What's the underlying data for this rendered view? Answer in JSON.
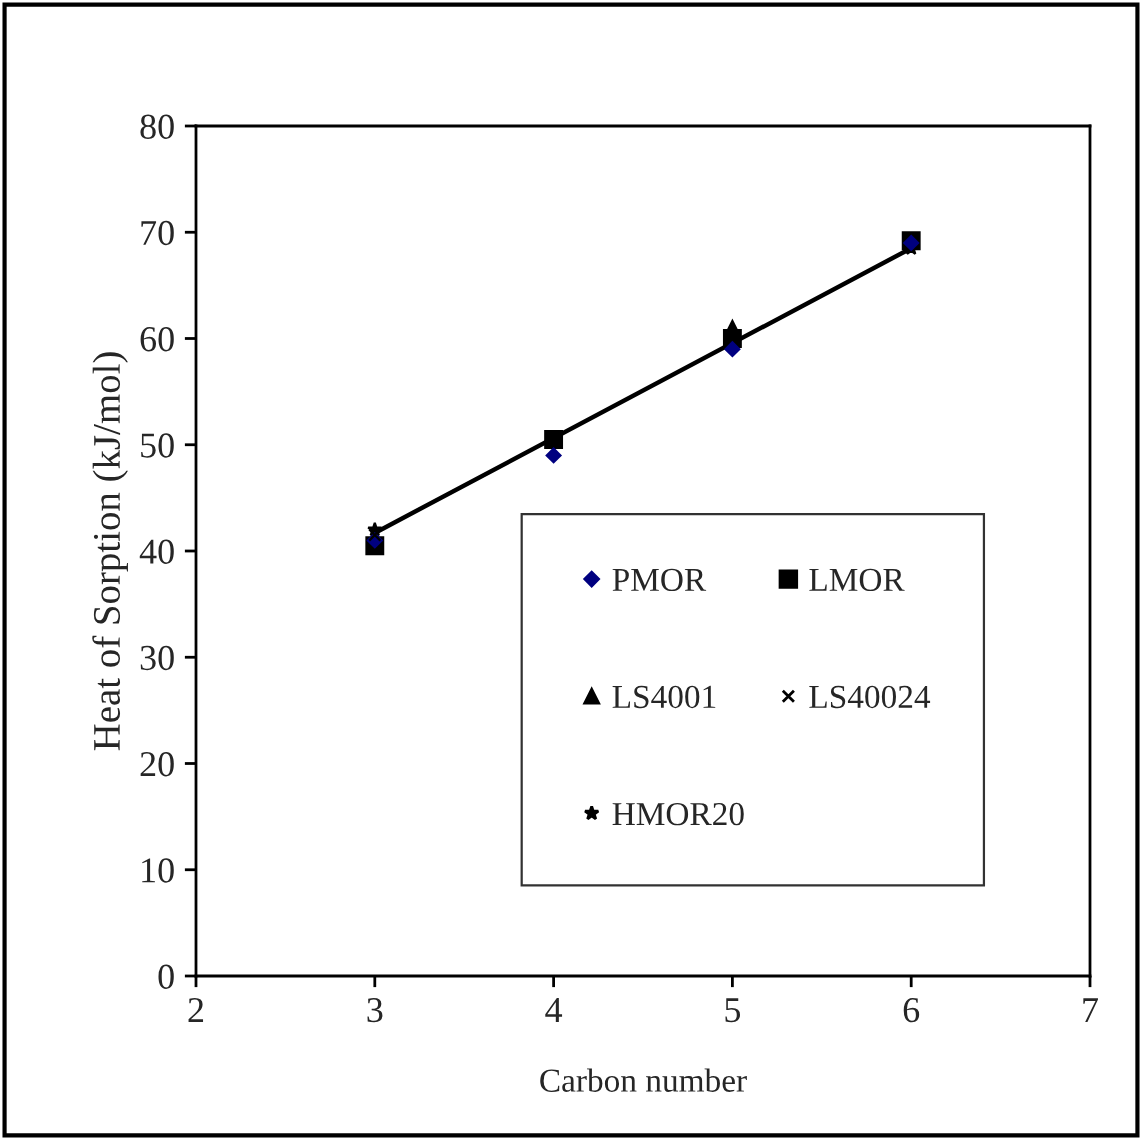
{
  "chart_data": {
    "type": "scatter",
    "xlabel": "Carbon number",
    "ylabel": "Heat of Sorption (kJ/mol)",
    "x": [
      3,
      4,
      5,
      6
    ],
    "xlim": [
      2,
      7
    ],
    "xticks": [
      2,
      3,
      4,
      5,
      6,
      7
    ],
    "ylim": [
      0,
      80
    ],
    "yticks": [
      0,
      10,
      20,
      30,
      40,
      50,
      60,
      70,
      80
    ],
    "grid": false,
    "legend": "center right",
    "series": [
      {
        "name": "PMOR",
        "color": "#000080",
        "marker": "diamond",
        "values": [
          41,
          49,
          59,
          69
        ]
      },
      {
        "name": "LMOR",
        "color": "#000000",
        "marker": "square",
        "values": [
          40.5,
          50.5,
          60,
          69.2
        ]
      },
      {
        "name": "LS4001",
        "color": "#000000",
        "marker": "triangle",
        "values": [
          null,
          null,
          61,
          null
        ]
      },
      {
        "name": "LS40024",
        "color": "#000000",
        "marker": "cross",
        "values": [
          41.5,
          null,
          null,
          null
        ]
      },
      {
        "name": "HMOR20",
        "color": "#000000",
        "marker": "star",
        "values": [
          42,
          null,
          null,
          68.5
        ]
      },
      {
        "type": "line",
        "color": "#000000",
        "marker": "none",
        "line_style": "solid",
        "x": [
          3,
          6
        ],
        "values": [
          41.7,
          68.5
        ]
      }
    ]
  }
}
